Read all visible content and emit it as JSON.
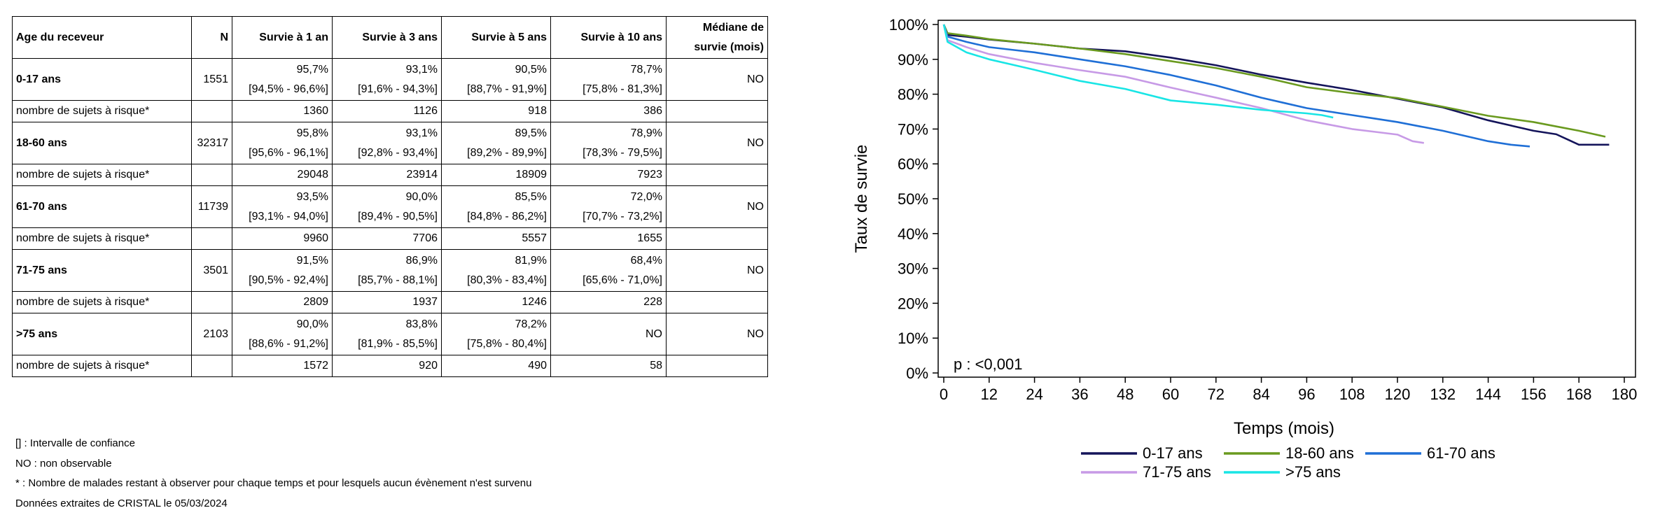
{
  "table": {
    "headers": {
      "age": "Age du receveur",
      "n": "N",
      "y1": "Survie à 1 an",
      "y3": "Survie à 3 ans",
      "y5": "Survie à 5 ans",
      "y10": "Survie à 10 ans",
      "median_line1": "Médiane de",
      "median_line2": "survie (mois)"
    },
    "risk_label": "nombre de sujets à risque*",
    "groups": [
      {
        "label": "0-17 ans",
        "n": "1551",
        "y1": "95,7%",
        "y1_ci": "[94,5% - 96,6%]",
        "y3": "93,1%",
        "y3_ci": "[91,6% - 94,3%]",
        "y5": "90,5%",
        "y5_ci": "[88,7% - 91,9%]",
        "y10": "78,7%",
        "y10_ci": "[75,8% - 81,3%]",
        "median": "NO",
        "risk": [
          "1360",
          "1126",
          "918",
          "386"
        ]
      },
      {
        "label": "18-60 ans",
        "n": "32317",
        "y1": "95,8%",
        "y1_ci": "[95,6% - 96,1%]",
        "y3": "93,1%",
        "y3_ci": "[92,8% - 93,4%]",
        "y5": "89,5%",
        "y5_ci": "[89,2% - 89,9%]",
        "y10": "78,9%",
        "y10_ci": "[78,3% - 79,5%]",
        "median": "NO",
        "risk": [
          "29048",
          "23914",
          "18909",
          "7923"
        ]
      },
      {
        "label": "61-70 ans",
        "n": "11739",
        "y1": "93,5%",
        "y1_ci": "[93,1% - 94,0%]",
        "y3": "90,0%",
        "y3_ci": "[89,4% - 90,5%]",
        "y5": "85,5%",
        "y5_ci": "[84,8% - 86,2%]",
        "y10": "72,0%",
        "y10_ci": "[70,7% - 73,2%]",
        "median": "NO",
        "risk": [
          "9960",
          "7706",
          "5557",
          "1655"
        ]
      },
      {
        "label": "71-75 ans",
        "n": "3501",
        "y1": "91,5%",
        "y1_ci": "[90,5% - 92,4%]",
        "y3": "86,9%",
        "y3_ci": "[85,7% - 88,1%]",
        "y5": "81,9%",
        "y5_ci": "[80,3% - 83,4%]",
        "y10": "68,4%",
        "y10_ci": "[65,6% - 71,0%]",
        "median": "NO",
        "risk": [
          "2809",
          "1937",
          "1246",
          "228"
        ]
      },
      {
        "label": ">75 ans",
        "n": "2103",
        "y1": "90,0%",
        "y1_ci": "[88,6% - 91,2%]",
        "y3": "83,8%",
        "y3_ci": "[81,9% - 85,5%]",
        "y5": "78,2%",
        "y5_ci": "[75,8% - 80,4%]",
        "y10": "NO",
        "y10_ci": "",
        "median": "NO",
        "risk": [
          "1572",
          "920",
          "490",
          "58"
        ]
      }
    ]
  },
  "notes": [
    "[] : Intervalle de confiance",
    "NO : non observable",
    "* : Nombre de malades restant à observer pour chaque temps et pour lesquels aucun évènement n'est survenu",
    "Données extraites de CRISTAL le 05/03/2024"
  ],
  "chart_data": {
    "type": "line",
    "xlabel": "Temps (mois)",
    "ylabel": "Taux de survie",
    "xlim": [
      0,
      180
    ],
    "ylim": [
      0,
      100
    ],
    "x_ticks": [
      0,
      12,
      24,
      36,
      48,
      60,
      72,
      84,
      96,
      108,
      120,
      132,
      144,
      156,
      168,
      180
    ],
    "y_tick_labels": [
      "0%",
      "10%",
      "20%",
      "30%",
      "40%",
      "50%",
      "60%",
      "70%",
      "80%",
      "90%",
      "100%"
    ],
    "grid": false,
    "legend_position": "bottom",
    "annotation": "p : <0,001",
    "series": [
      {
        "name": "0-17 ans",
        "color": "#14145a",
        "points": [
          [
            0,
            100
          ],
          [
            1,
            97
          ],
          [
            6,
            96.5
          ],
          [
            12,
            95.7
          ],
          [
            24,
            94.5
          ],
          [
            36,
            93.1
          ],
          [
            48,
            92.3
          ],
          [
            60,
            90.5
          ],
          [
            72,
            88.3
          ],
          [
            84,
            85.6
          ],
          [
            96,
            83.3
          ],
          [
            108,
            81.2
          ],
          [
            120,
            78.7
          ],
          [
            132,
            76.2
          ],
          [
            144,
            72.5
          ],
          [
            156,
            69.5
          ],
          [
            162,
            68.5
          ],
          [
            168,
            65.5
          ],
          [
            176,
            65.5
          ]
        ]
      },
      {
        "name": "18-60 ans",
        "color": "#6a9a1f",
        "points": [
          [
            0,
            100
          ],
          [
            1,
            97.5
          ],
          [
            6,
            96.8
          ],
          [
            12,
            95.8
          ],
          [
            24,
            94.5
          ],
          [
            36,
            93.1
          ],
          [
            48,
            91.5
          ],
          [
            60,
            89.5
          ],
          [
            72,
            87.5
          ],
          [
            84,
            85
          ],
          [
            96,
            82
          ],
          [
            108,
            80.3
          ],
          [
            120,
            78.9
          ],
          [
            132,
            76.4
          ],
          [
            144,
            73.8
          ],
          [
            156,
            72
          ],
          [
            168,
            69.5
          ],
          [
            175,
            67.8
          ]
        ]
      },
      {
        "name": "61-70 ans",
        "color": "#1f6fd6",
        "points": [
          [
            0,
            100
          ],
          [
            1,
            96.5
          ],
          [
            6,
            95
          ],
          [
            12,
            93.5
          ],
          [
            24,
            92
          ],
          [
            36,
            90
          ],
          [
            48,
            88
          ],
          [
            60,
            85.5
          ],
          [
            72,
            82.5
          ],
          [
            84,
            79
          ],
          [
            96,
            76
          ],
          [
            108,
            74
          ],
          [
            120,
            72
          ],
          [
            132,
            69.5
          ],
          [
            144,
            66.5
          ],
          [
            150,
            65.5
          ],
          [
            155,
            65
          ]
        ]
      },
      {
        "name": "71-75 ans",
        "color": "#c79ae6",
        "points": [
          [
            0,
            100
          ],
          [
            1,
            95.5
          ],
          [
            6,
            93.5
          ],
          [
            12,
            91.5
          ],
          [
            24,
            89
          ],
          [
            36,
            86.9
          ],
          [
            48,
            85
          ],
          [
            60,
            81.9
          ],
          [
            72,
            79
          ],
          [
            84,
            76
          ],
          [
            96,
            72.5
          ],
          [
            108,
            70
          ],
          [
            120,
            68.4
          ],
          [
            124,
            66.5
          ],
          [
            127,
            66
          ]
        ]
      },
      {
        "name": ">75 ans",
        "color": "#19e5e5",
        "points": [
          [
            0,
            100
          ],
          [
            1,
            95
          ],
          [
            6,
            92
          ],
          [
            12,
            90
          ],
          [
            24,
            87
          ],
          [
            36,
            83.8
          ],
          [
            48,
            81.5
          ],
          [
            60,
            78.2
          ],
          [
            72,
            77
          ],
          [
            84,
            75.5
          ],
          [
            96,
            74.5
          ],
          [
            100,
            74
          ],
          [
            103,
            73.3
          ]
        ]
      }
    ]
  }
}
